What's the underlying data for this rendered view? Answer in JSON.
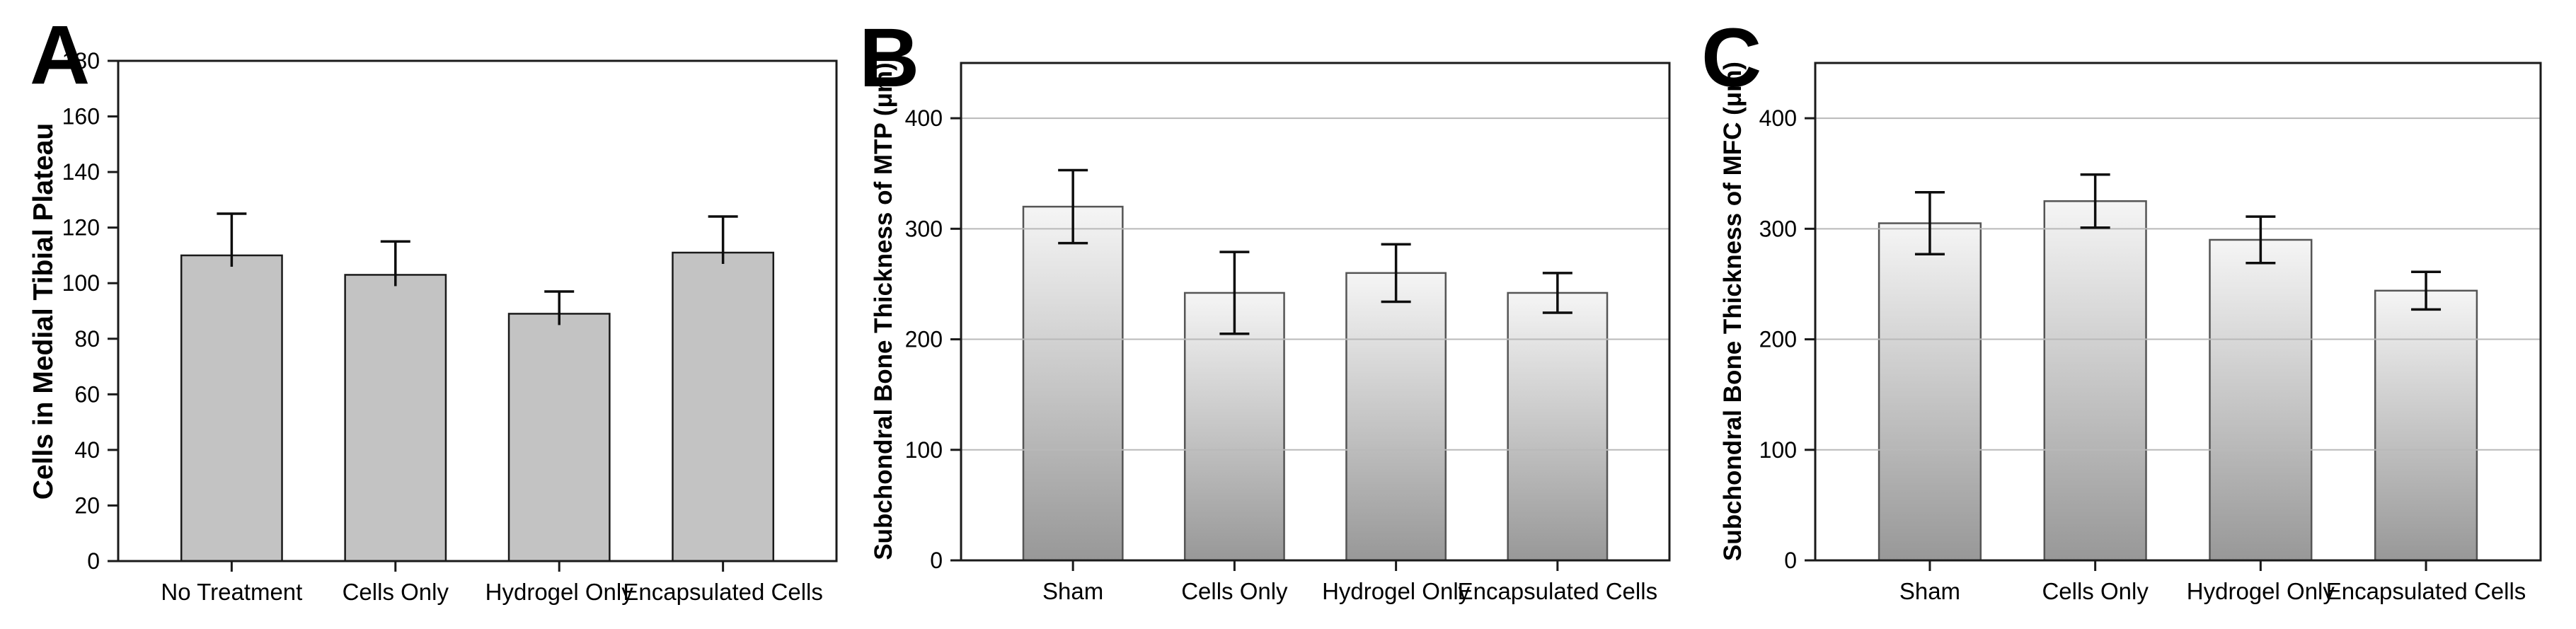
{
  "figure": {
    "background": "#ffffff",
    "panels": [
      "A",
      "B",
      "C"
    ]
  },
  "styles": {
    "text_color": "#000000",
    "axis_color": "#1a1a1a",
    "gridline_color": "#b9b9b9",
    "error_bar_color": "#0d0d0d",
    "flat_bar_fill": "#c3c3c3",
    "flat_bar_stroke": "#1a1a1a",
    "gradient_bar_top": "#f5f5f5",
    "gradient_bar_bottom": "#989898",
    "gradient_bar_stroke": "#555555"
  },
  "chart_data": [
    {
      "type": "bar",
      "panel_label": "A",
      "title": "",
      "xlabel": "",
      "ylabel": "Cells in Medial Tibial Plateau",
      "ylim": [
        0,
        180
      ],
      "yticks": [
        0,
        20,
        40,
        60,
        80,
        100,
        120,
        140,
        160,
        180
      ],
      "grid": false,
      "gridlines_at": [],
      "bar_fill_style": "flat",
      "error_bar_style": "upper-only",
      "legend": "none",
      "categories": [
        "No Treatment",
        "Cells Only",
        "Hydrogel Only",
        "Encapsulated Cells"
      ],
      "values": [
        110,
        103,
        89,
        111
      ],
      "error_up": [
        15,
        12,
        8,
        13
      ],
      "error_down": [
        0,
        0,
        0,
        0
      ]
    },
    {
      "type": "bar",
      "panel_label": "B",
      "title": "",
      "xlabel": "",
      "ylabel": "Subchondral Bone Thickness of MTP (μm)",
      "ylim": [
        0,
        450
      ],
      "yticks": [
        0,
        100,
        200,
        300,
        400
      ],
      "grid": true,
      "gridlines_at": [
        100,
        200,
        300,
        400
      ],
      "bar_fill_style": "gradient",
      "error_bar_style": "symmetric",
      "legend": "none",
      "categories": [
        "Sham",
        "Cells Only",
        "Hydrogel Only",
        "Encapsulated Cells"
      ],
      "values": [
        320,
        242,
        260,
        242
      ],
      "error_up": [
        33,
        37,
        26,
        18
      ],
      "error_down": [
        33,
        37,
        26,
        18
      ]
    },
    {
      "type": "bar",
      "panel_label": "C",
      "title": "",
      "xlabel": "",
      "ylabel": "Subchondral Bone Thickness of MFC (μm)",
      "ylim": [
        0,
        450
      ],
      "yticks": [
        0,
        100,
        200,
        300,
        400
      ],
      "grid": true,
      "gridlines_at": [
        100,
        200,
        300,
        400
      ],
      "bar_fill_style": "gradient",
      "error_bar_style": "symmetric",
      "legend": "none",
      "categories": [
        "Sham",
        "Cells Only",
        "Hydrogel Only",
        "Encapsulated Cells"
      ],
      "values": [
        305,
        325,
        290,
        244
      ],
      "error_up": [
        28,
        24,
        21,
        17
      ],
      "error_down": [
        28,
        24,
        21,
        17
      ]
    }
  ]
}
